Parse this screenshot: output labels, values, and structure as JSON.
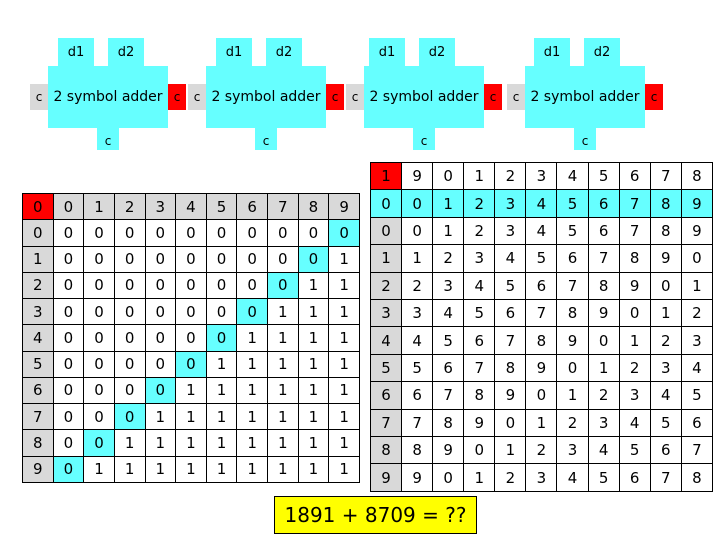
{
  "adders": [
    {
      "label": "2 symbol adder",
      "d1": "d1",
      "d2": "d2",
      "c_in": "c",
      "c_out": "c",
      "c_down": "c"
    },
    {
      "label": "2 symbol adder",
      "d1": "d1",
      "d2": "d2",
      "c_in": "c",
      "c_out": "c",
      "c_down": "c"
    },
    {
      "label": "2 symbol adder",
      "d1": "d1",
      "d2": "d2",
      "c_in": "c",
      "c_out": "c",
      "c_down": "c"
    },
    {
      "label": "2 symbol adder",
      "d1": "d1",
      "d2": "d2",
      "c_in": "c",
      "c_out": "c",
      "c_down": "c"
    }
  ],
  "carry_table": {
    "corner": "0",
    "header": [
      "0",
      "1",
      "2",
      "3",
      "4",
      "5",
      "6",
      "7",
      "8",
      "9"
    ],
    "row_labels": [
      "0",
      "1",
      "2",
      "3",
      "4",
      "5",
      "6",
      "7",
      "8",
      "9"
    ],
    "cells": [
      [
        "0",
        "0",
        "0",
        "0",
        "0",
        "0",
        "0",
        "0",
        "0",
        "0"
      ],
      [
        "0",
        "0",
        "0",
        "0",
        "0",
        "0",
        "0",
        "0",
        "0",
        "1"
      ],
      [
        "0",
        "0",
        "0",
        "0",
        "0",
        "0",
        "0",
        "0",
        "1",
        "1"
      ],
      [
        "0",
        "0",
        "0",
        "0",
        "0",
        "0",
        "0",
        "1",
        "1",
        "1"
      ],
      [
        "0",
        "0",
        "0",
        "0",
        "0",
        "0",
        "1",
        "1",
        "1",
        "1"
      ],
      [
        "0",
        "0",
        "0",
        "0",
        "0",
        "1",
        "1",
        "1",
        "1",
        "1"
      ],
      [
        "0",
        "0",
        "0",
        "0",
        "1",
        "1",
        "1",
        "1",
        "1",
        "1"
      ],
      [
        "0",
        "0",
        "0",
        "1",
        "1",
        "1",
        "1",
        "1",
        "1",
        "1"
      ],
      [
        "0",
        "0",
        "1",
        "1",
        "1",
        "1",
        "1",
        "1",
        "1",
        "1"
      ],
      [
        "0",
        "1",
        "1",
        "1",
        "1",
        "1",
        "1",
        "1",
        "1",
        "1"
      ]
    ]
  },
  "sum_table": {
    "top_row": [
      "1",
      "9",
      "0",
      "1",
      "2",
      "3",
      "4",
      "5",
      "6",
      "7",
      "8"
    ],
    "corner": "0",
    "header": [
      "0",
      "1",
      "2",
      "3",
      "4",
      "5",
      "6",
      "7",
      "8",
      "9"
    ],
    "row_labels": [
      "0",
      "1",
      "2",
      "3",
      "4",
      "5",
      "6",
      "7",
      "8",
      "9"
    ],
    "cells": [
      [
        "0",
        "1",
        "2",
        "3",
        "4",
        "5",
        "6",
        "7",
        "8",
        "9"
      ],
      [
        "1",
        "2",
        "3",
        "4",
        "5",
        "6",
        "7",
        "8",
        "9",
        "0"
      ],
      [
        "2",
        "3",
        "4",
        "5",
        "6",
        "7",
        "8",
        "9",
        "0",
        "1"
      ],
      [
        "3",
        "4",
        "5",
        "6",
        "7",
        "8",
        "9",
        "0",
        "1",
        "2"
      ],
      [
        "4",
        "5",
        "6",
        "7",
        "8",
        "9",
        "0",
        "1",
        "2",
        "3"
      ],
      [
        "5",
        "6",
        "7",
        "8",
        "9",
        "0",
        "1",
        "2",
        "3",
        "4"
      ],
      [
        "6",
        "7",
        "8",
        "9",
        "0",
        "1",
        "2",
        "3",
        "4",
        "5"
      ],
      [
        "7",
        "8",
        "9",
        "0",
        "1",
        "2",
        "3",
        "4",
        "5",
        "6"
      ],
      [
        "8",
        "9",
        "0",
        "1",
        "2",
        "3",
        "4",
        "5",
        "6",
        "7"
      ],
      [
        "9",
        "0",
        "1",
        "2",
        "3",
        "4",
        "5",
        "6",
        "7",
        "8"
      ]
    ]
  },
  "problem": "1891 + 8709 = ??",
  "colors": {
    "cyan": "#66ffff",
    "red": "#ff0000",
    "gray": "#d9d9d9",
    "yellow": "#ffff00",
    "white": "#ffffff"
  }
}
